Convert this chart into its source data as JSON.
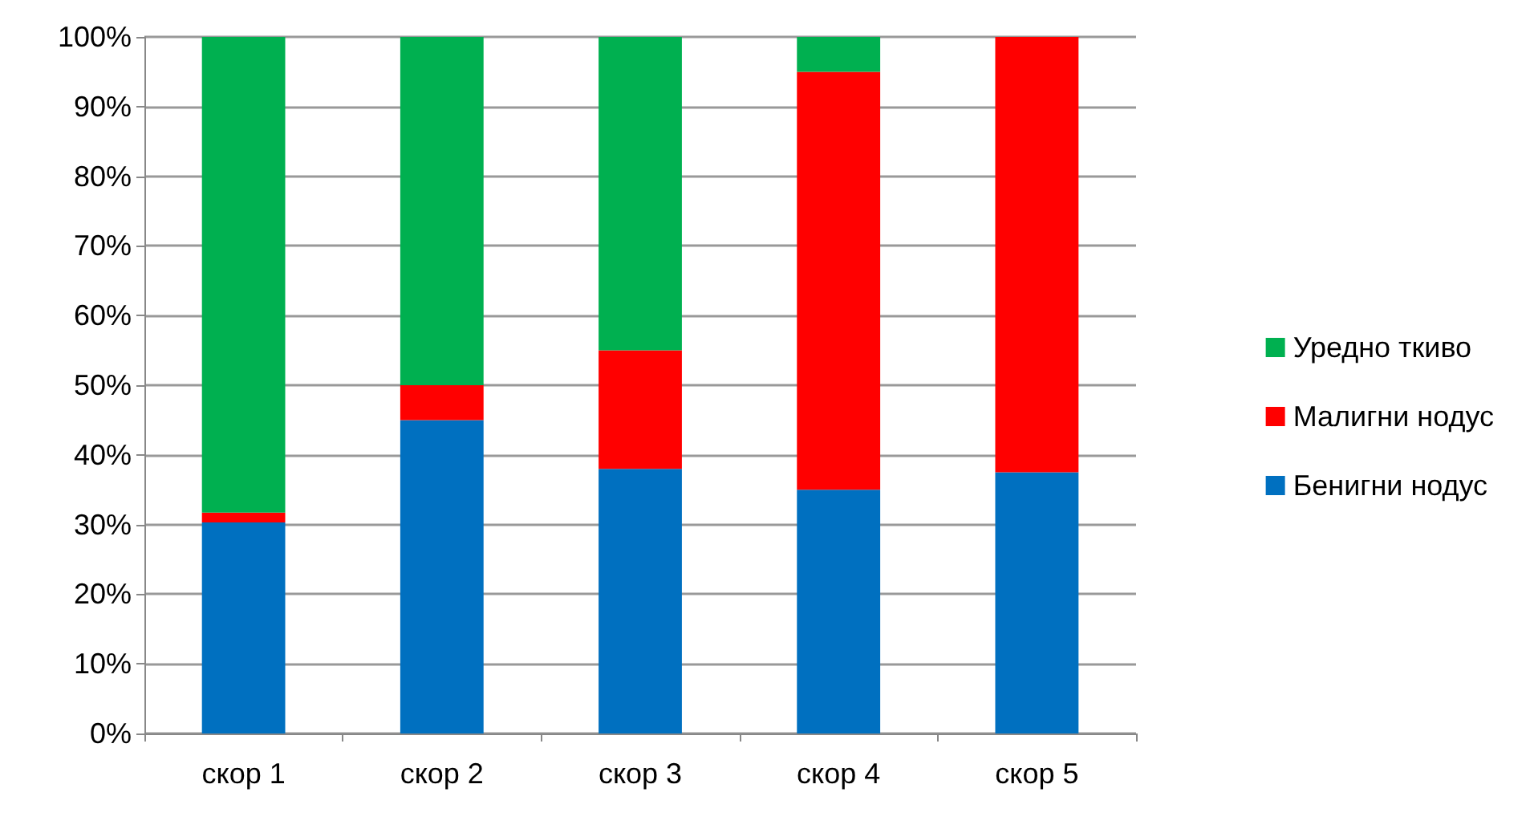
{
  "chart_data": {
    "type": "bar",
    "stacked": true,
    "categories": [
      "скор 1",
      "скор 2",
      "скор 3",
      "скор 4",
      "скор 5"
    ],
    "series": [
      {
        "name": "Бенигни нодус",
        "color": "#0070c0",
        "values": [
          30.3,
          45,
          38,
          35,
          37.5
        ]
      },
      {
        "name": "Малигни нодус",
        "color": "#ff0000",
        "values": [
          1.4,
          5,
          17,
          60,
          62.5
        ]
      },
      {
        "name": "Уредно ткиво",
        "color": "#00b050",
        "values": [
          68.3,
          50,
          45,
          5,
          0
        ]
      }
    ],
    "ylim": [
      0,
      100
    ],
    "yticks": [
      {
        "value": 0,
        "label": "0%"
      },
      {
        "value": 10,
        "label": "10%"
      },
      {
        "value": 20,
        "label": "20%"
      },
      {
        "value": 30,
        "label": "30%"
      },
      {
        "value": 40,
        "label": "40%"
      },
      {
        "value": 50,
        "label": "50%"
      },
      {
        "value": 60,
        "label": "60%"
      },
      {
        "value": 70,
        "label": "70%"
      },
      {
        "value": 80,
        "label": "80%"
      },
      {
        "value": 90,
        "label": "90%"
      },
      {
        "value": 100,
        "label": "100%"
      }
    ],
    "grid": "y",
    "legend": "right"
  }
}
